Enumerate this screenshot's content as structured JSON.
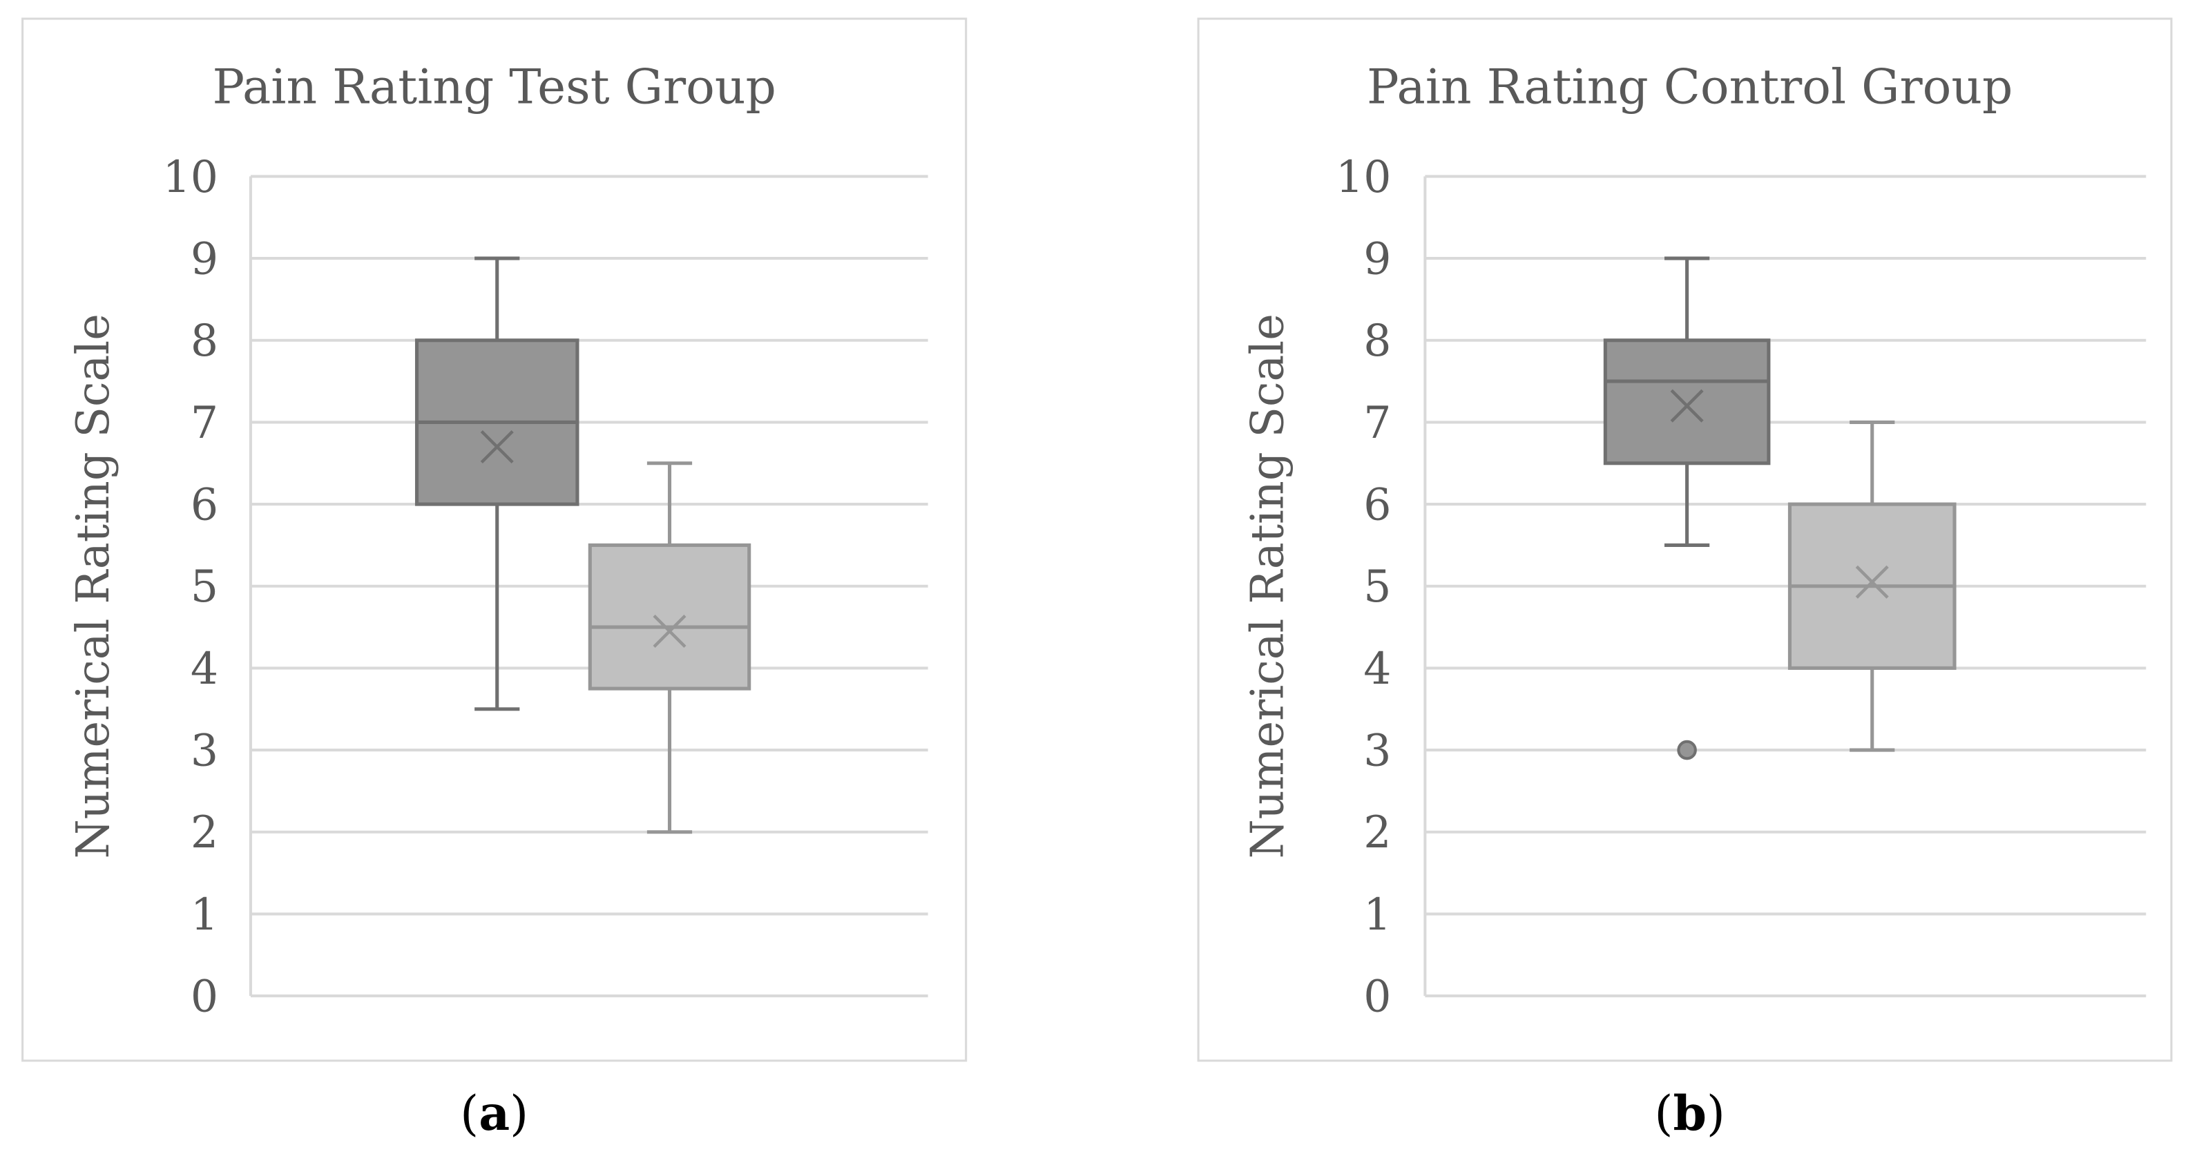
{
  "colors": {
    "box_dark_fill": "#959595",
    "box_dark_stroke": "#707070",
    "box_light_fill": "#c0c0c0",
    "box_light_stroke": "#969696",
    "grid": "#d9d9d9",
    "text": "#595959"
  },
  "chart_data": [
    {
      "type": "box",
      "title": "Pain Rating Test Group",
      "ylabel": "Numerical Rating Scale",
      "caption_letter": "a",
      "ylim": [
        0,
        10
      ],
      "yticks": [
        "0",
        "1",
        "2",
        "3",
        "4",
        "5",
        "6",
        "7",
        "8",
        "9",
        "10"
      ],
      "grid": true,
      "boxes": [
        {
          "style": "dark",
          "min": 3.5,
          "q1": 6,
          "median": 7,
          "q3": 8,
          "max": 9,
          "mean": 6.7,
          "outliers": []
        },
        {
          "style": "light",
          "min": 2,
          "q1": 3.75,
          "median": 4.5,
          "q3": 5.5,
          "max": 6.5,
          "mean": 4.45,
          "outliers": []
        }
      ]
    },
    {
      "type": "box",
      "title": "Pain Rating Control Group",
      "ylabel": "Numerical Rating Scale",
      "caption_letter": "b",
      "ylim": [
        0,
        10
      ],
      "yticks": [
        "0",
        "1",
        "2",
        "3",
        "4",
        "5",
        "6",
        "7",
        "8",
        "9",
        "10"
      ],
      "grid": true,
      "boxes": [
        {
          "style": "dark",
          "min": 5.5,
          "q1": 6.5,
          "median": 7.5,
          "q3": 8,
          "max": 9,
          "mean": 7.2,
          "outliers": [
            3
          ]
        },
        {
          "style": "light",
          "min": 3,
          "q1": 4,
          "median": 5,
          "q3": 6,
          "max": 7,
          "mean": 5.05,
          "outliers": []
        }
      ]
    }
  ]
}
